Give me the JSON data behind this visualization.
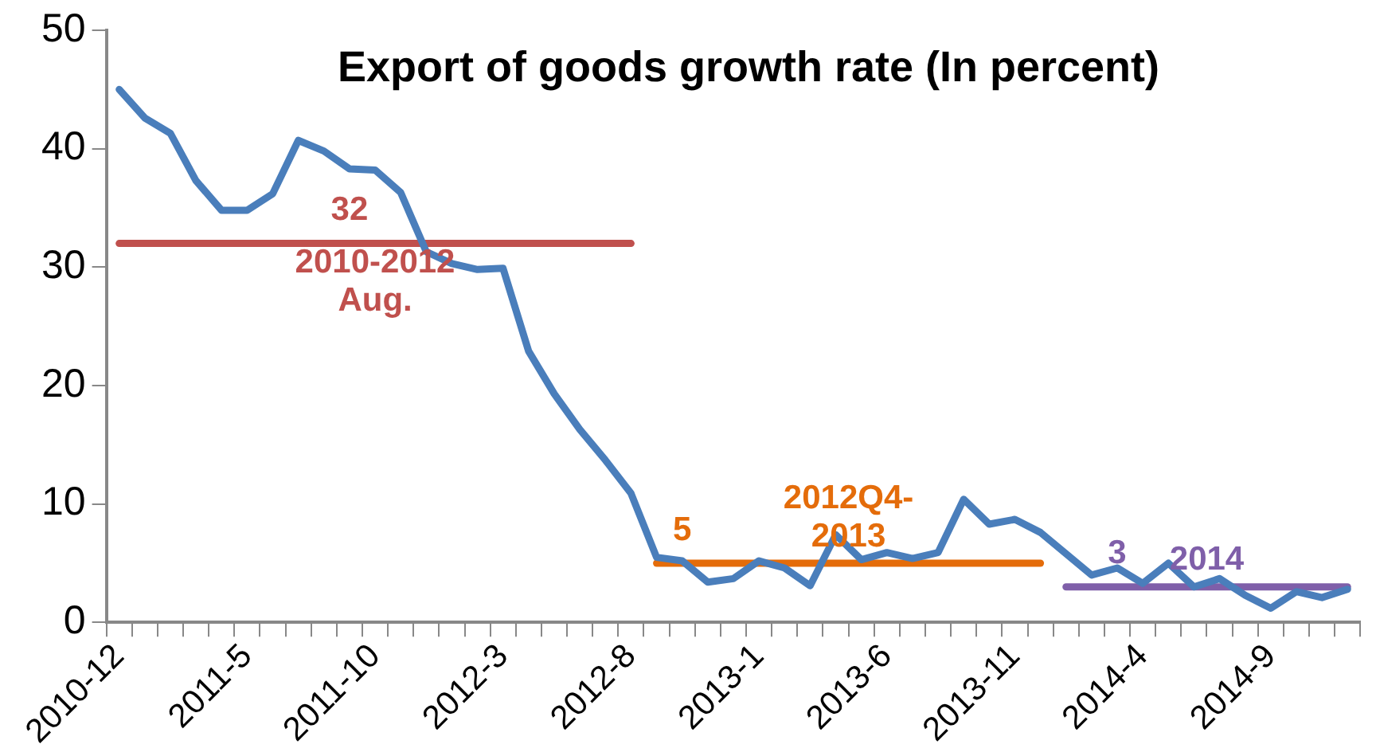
{
  "chart_data": {
    "type": "line",
    "title": "Export of goods growth rate  (In percent)",
    "categories": [
      "2010-12",
      null,
      null,
      null,
      null,
      "2011-5",
      null,
      null,
      null,
      null,
      "2011-10",
      null,
      null,
      null,
      null,
      "2012-3",
      null,
      null,
      null,
      null,
      "2012-8",
      null,
      null,
      null,
      null,
      "2013-1",
      null,
      null,
      null,
      null,
      "2013-6",
      null,
      null,
      null,
      null,
      "2013-11",
      null,
      null,
      null,
      null,
      "2014-4",
      null,
      null,
      null,
      null,
      "2014-9",
      null,
      null,
      null
    ],
    "ylim": [
      0,
      50
    ],
    "yticks": [
      0,
      10,
      20,
      30,
      40,
      50
    ],
    "grid": false,
    "legend": false,
    "marker": "none",
    "series": [
      {
        "color": "#4a7ebb",
        "values": [
          45,
          42.6,
          41.3,
          37.3,
          34.8,
          34.8,
          36.2,
          40.7,
          39.8,
          38.3,
          38.2,
          36.3,
          31.3,
          30.3,
          29.8,
          29.9,
          22.9,
          19.3,
          16.3,
          13.7,
          10.9,
          5.5,
          5.2,
          3.4,
          3.7,
          5.2,
          4.6,
          3.1,
          7.4,
          5.3,
          5.9,
          5.4,
          5.9,
          10.4,
          8.3,
          8.7,
          7.6,
          5.8,
          4.0,
          4.6,
          3.3,
          5.0,
          3.0,
          3.7,
          2.3,
          1.2,
          2.6,
          2.1,
          2.8
        ]
      },
      {
        "type": "line",
        "name": "2010-2012 Aug.",
        "color": "#c0504d",
        "values": [
          32,
          32,
          32,
          32,
          32,
          32,
          32,
          32,
          32,
          32,
          32,
          32,
          32,
          32,
          32,
          32,
          32,
          32,
          32,
          32,
          32,
          null,
          null,
          null,
          null,
          null,
          null,
          null,
          null,
          null,
          null,
          null,
          null,
          null,
          null,
          null,
          null,
          null,
          null,
          null,
          null,
          null,
          null,
          null,
          null,
          null,
          null,
          null,
          null
        ],
        "value_labels": [
          null,
          null,
          null,
          null,
          null,
          null,
          null,
          null,
          null,
          "32",
          null,
          null,
          null,
          null,
          null,
          null,
          null,
          null,
          null,
          null,
          null,
          null,
          null,
          null,
          null,
          null,
          null,
          null,
          null,
          null,
          null,
          null,
          null,
          null,
          null,
          null,
          null,
          null,
          null,
          null,
          null,
          null,
          null,
          null,
          null,
          null,
          null,
          null,
          null
        ]
      },
      {
        "type": "line",
        "name": "2012Q4-2013",
        "color": "#e46c0a",
        "values": [
          null,
          null,
          null,
          null,
          null,
          null,
          null,
          null,
          null,
          null,
          null,
          null,
          null,
          null,
          null,
          null,
          null,
          null,
          null,
          null,
          null,
          5,
          5,
          5,
          5,
          5,
          5,
          5,
          5,
          5,
          5,
          5,
          5,
          5,
          5,
          5,
          5,
          null,
          null,
          null,
          null,
          null,
          null,
          null,
          null,
          null,
          null,
          null,
          null
        ],
        "value_labels": [
          null,
          null,
          null,
          null,
          null,
          null,
          null,
          null,
          null,
          null,
          null,
          null,
          null,
          null,
          null,
          null,
          null,
          null,
          null,
          null,
          null,
          null,
          "5",
          null,
          null,
          null,
          null,
          null,
          null,
          null,
          null,
          null,
          null,
          null,
          null,
          null,
          null,
          null,
          null,
          null,
          null,
          null,
          null,
          null,
          null,
          null,
          null,
          null,
          null
        ]
      },
      {
        "type": "line",
        "name": "2014",
        "color": "#7f5fa9",
        "values": [
          null,
          null,
          null,
          null,
          null,
          null,
          null,
          null,
          null,
          null,
          null,
          null,
          null,
          null,
          null,
          null,
          null,
          null,
          null,
          null,
          null,
          null,
          null,
          null,
          null,
          null,
          null,
          null,
          null,
          null,
          null,
          null,
          null,
          null,
          null,
          null,
          null,
          3,
          3,
          3,
          3,
          3,
          3,
          3,
          3,
          3,
          3,
          3,
          3
        ],
        "value_labels": [
          null,
          null,
          null,
          null,
          null,
          null,
          null,
          null,
          null,
          null,
          null,
          null,
          null,
          null,
          null,
          null,
          null,
          null,
          null,
          null,
          null,
          null,
          null,
          null,
          null,
          null,
          null,
          null,
          null,
          null,
          null,
          null,
          null,
          null,
          null,
          null,
          null,
          null,
          null,
          "3",
          null,
          null,
          null,
          null,
          null,
          null,
          null,
          null,
          null
        ]
      }
    ]
  }
}
